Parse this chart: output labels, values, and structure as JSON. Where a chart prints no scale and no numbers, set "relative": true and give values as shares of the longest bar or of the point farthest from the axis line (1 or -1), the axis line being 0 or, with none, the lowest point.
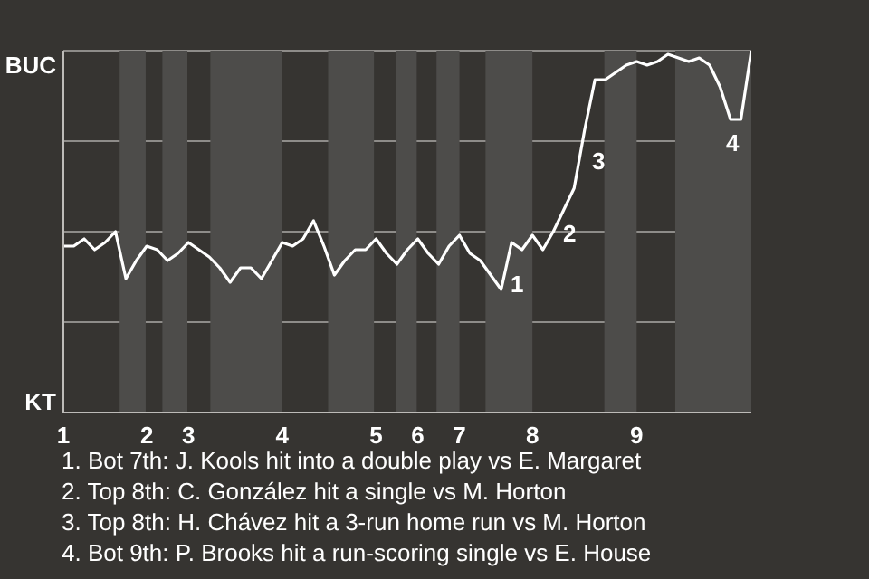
{
  "chart_data": {
    "type": "line",
    "relative": true,
    "categories": [
      "1",
      null,
      null,
      null,
      null,
      null,
      null,
      null,
      "2",
      null,
      null,
      null,
      "3",
      null,
      null,
      null,
      null,
      null,
      null,
      null,
      null,
      "4",
      null,
      null,
      null,
      null,
      null,
      null,
      null,
      null,
      "5",
      null,
      null,
      null,
      "6",
      null,
      null,
      null,
      "7",
      null,
      null,
      null,
      null,
      null,
      null,
      "8",
      null,
      null,
      null,
      null,
      null,
      null,
      null,
      null,
      null,
      "9",
      null,
      null,
      null,
      null,
      null,
      null,
      null,
      null,
      null,
      null,
      null
    ],
    "series": [
      {
        "color": "#ffffff",
        "values": [
          0.46,
          0.46,
          0.48,
          0.45,
          0.47,
          0.5,
          0.37,
          0.42,
          0.46,
          0.45,
          0.42,
          0.44,
          0.47,
          0.45,
          0.43,
          0.4,
          0.36,
          0.4,
          0.4,
          0.37,
          0.42,
          0.47,
          0.46,
          0.48,
          0.53,
          0.46,
          0.38,
          0.42,
          0.45,
          0.45,
          0.48,
          0.44,
          0.41,
          0.45,
          0.48,
          0.44,
          0.41,
          0.46,
          0.49,
          0.44,
          0.42,
          0.38,
          0.34,
          0.47,
          0.45,
          0.49,
          0.45,
          0.5,
          0.56,
          0.62,
          0.78,
          0.92,
          0.92,
          0.94,
          0.96,
          0.97,
          0.96,
          0.97,
          0.99,
          0.98,
          0.97,
          0.98,
          0.96,
          0.9,
          0.81,
          0.81,
          1.0
        ]
      }
    ],
    "annotations": [
      "BUC",
      "KT",
      "1",
      "2",
      "3",
      "4",
      "1. Bot 7th: J. Kools hit into a double play vs E. Margaret",
      "2. Top 8th: C. González hit a single vs M. Horton",
      "3. Top 8th: H. Chávez hit a 3-run home run vs M. Horton",
      "4. Bot 9th: P. Brooks hit a run-scoring single vs E. House"
    ]
  }
}
